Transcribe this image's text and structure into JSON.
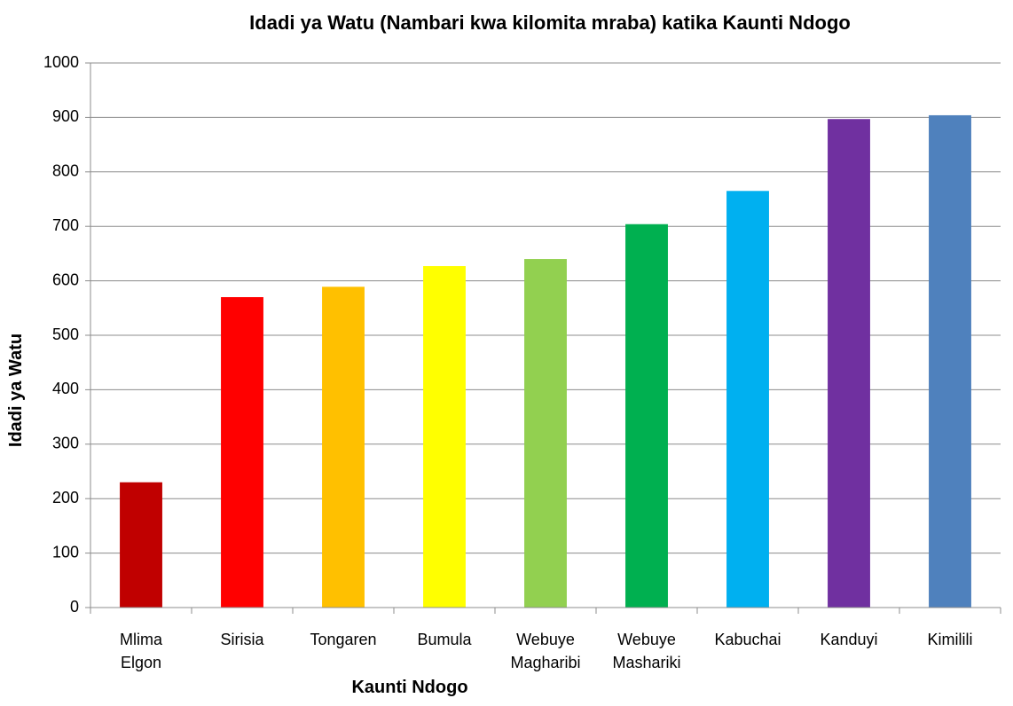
{
  "chart_data": {
    "type": "bar",
    "title": "Idadi ya Watu (Nambari kwa kilomita mraba) katika Kaunti Ndogo",
    "x_label": "Kaunti Ndogo",
    "y_label": "Idadi ya Watu",
    "categories": [
      "Mlima Elgon",
      "Sirisia",
      "Tongaren",
      "Bumula",
      "Webuye Magharibi",
      "Webuye Mashariki",
      "Kabuchai",
      "Kanduyi",
      "Kimilili"
    ],
    "values": [
      230,
      570,
      589,
      627,
      640,
      704,
      765,
      897,
      904
    ],
    "colors": [
      "#c00000",
      "#ff0000",
      "#ffc000",
      "#ffff00",
      "#92d050",
      "#00b050",
      "#00b0f0",
      "#7030a0",
      "#4f81bd"
    ],
    "ylim": [
      0,
      1000
    ],
    "yticks": [
      0,
      100,
      200,
      300,
      400,
      500,
      600,
      700,
      800,
      900,
      1000
    ],
    "grid": true
  }
}
